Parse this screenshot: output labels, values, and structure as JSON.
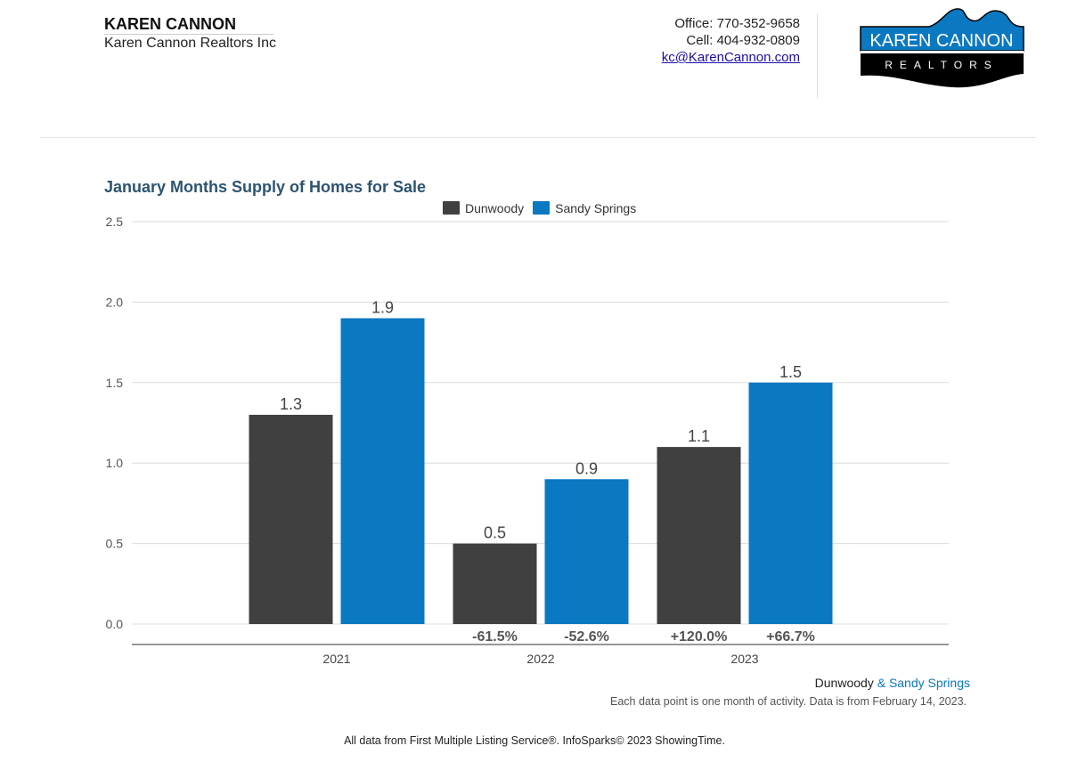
{
  "header": {
    "agent_name": "KAREN CANNON",
    "company": "Karen Cannon Realtors Inc",
    "office": "Office: 770-352-9658",
    "cell": "Cell: 404-932-0809",
    "email": "kc@KarenCannon.com",
    "logo": {
      "line1": "KAREN CANNON",
      "line2": "REALTORS",
      "colors": {
        "top": "#0b78c2",
        "bottom": "#000000"
      }
    }
  },
  "chart_data": {
    "type": "bar",
    "title": "January Months Supply of Homes for Sale",
    "categories": [
      "2021",
      "2022",
      "2023"
    ],
    "series": [
      {
        "name": "Dunwoody",
        "color": "#404040",
        "values": [
          1.3,
          0.5,
          1.1
        ],
        "labels": [
          "1.3",
          "0.5",
          "1.1"
        ],
        "changes": [
          "",
          "-61.5%",
          "+120.0%"
        ]
      },
      {
        "name": "Sandy Springs",
        "color": "#0b78c2",
        "values": [
          1.9,
          0.9,
          1.5
        ],
        "labels": [
          "1.9",
          "0.9",
          "1.5"
        ],
        "changes": [
          "",
          "-52.6%",
          "+66.7%"
        ]
      }
    ],
    "ylim": [
      0,
      2.5
    ],
    "yticks": [
      "0.0",
      "0.5",
      "1.0",
      "1.5",
      "2.0",
      "2.5"
    ],
    "grid": true,
    "legend": "top"
  },
  "notes": {
    "area_a": "Dunwoody",
    "amp": " & ",
    "area_b": "Sandy Springs",
    "data_note": "Each data point is one month of activity. Data is from February 14, 2023."
  },
  "footer": "All data from First Multiple Listing Service®. InfoSparks© 2023 ShowingTime."
}
